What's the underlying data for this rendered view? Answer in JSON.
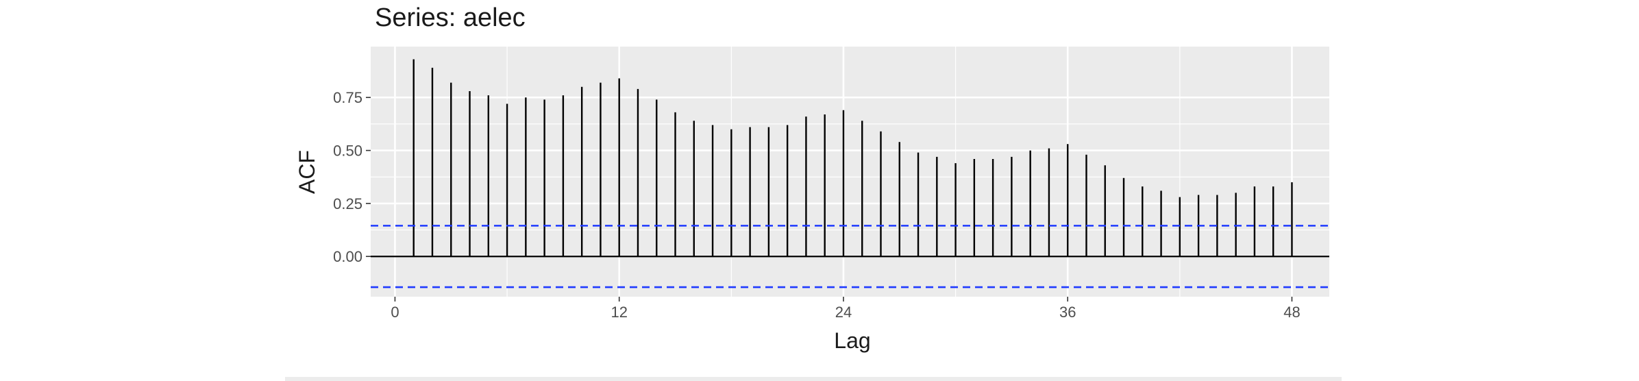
{
  "chart_data": {
    "type": "bar",
    "title": "Series: aelec",
    "xlabel": "Lag",
    "ylabel": "ACF",
    "xlim": [
      -1.3,
      50
    ],
    "ylim": [
      -0.19,
      0.99
    ],
    "x_ticks": [
      0,
      12,
      24,
      36,
      48
    ],
    "y_ticks": [
      0,
      0.25,
      0.5,
      0.75
    ],
    "y_tick_labels": [
      "0.00",
      "0.25",
      "0.50",
      "0.75"
    ],
    "lags": [
      1,
      2,
      3,
      4,
      5,
      6,
      7,
      8,
      9,
      10,
      11,
      12,
      13,
      14,
      15,
      16,
      17,
      18,
      19,
      20,
      21,
      22,
      23,
      24,
      25,
      26,
      27,
      28,
      29,
      30,
      31,
      32,
      33,
      34,
      35,
      36,
      37,
      38,
      39,
      40,
      41,
      42,
      43,
      44,
      45,
      46,
      47,
      48
    ],
    "values": [
      0.93,
      0.89,
      0.82,
      0.78,
      0.76,
      0.72,
      0.75,
      0.74,
      0.76,
      0.8,
      0.82,
      0.84,
      0.79,
      0.74,
      0.68,
      0.64,
      0.62,
      0.6,
      0.61,
      0.61,
      0.62,
      0.66,
      0.67,
      0.69,
      0.64,
      0.59,
      0.54,
      0.49,
      0.47,
      0.44,
      0.46,
      0.46,
      0.47,
      0.5,
      0.51,
      0.53,
      0.48,
      0.43,
      0.37,
      0.33,
      0.31,
      0.28,
      0.29,
      0.29,
      0.3,
      0.33,
      0.33,
      0.35
    ],
    "confidence_bound": 0.145,
    "grid": true,
    "colors": {
      "panel": "#ebebeb",
      "gridline": "#ffffff",
      "bar": "#000000",
      "confidence": "#1f3bff"
    }
  }
}
